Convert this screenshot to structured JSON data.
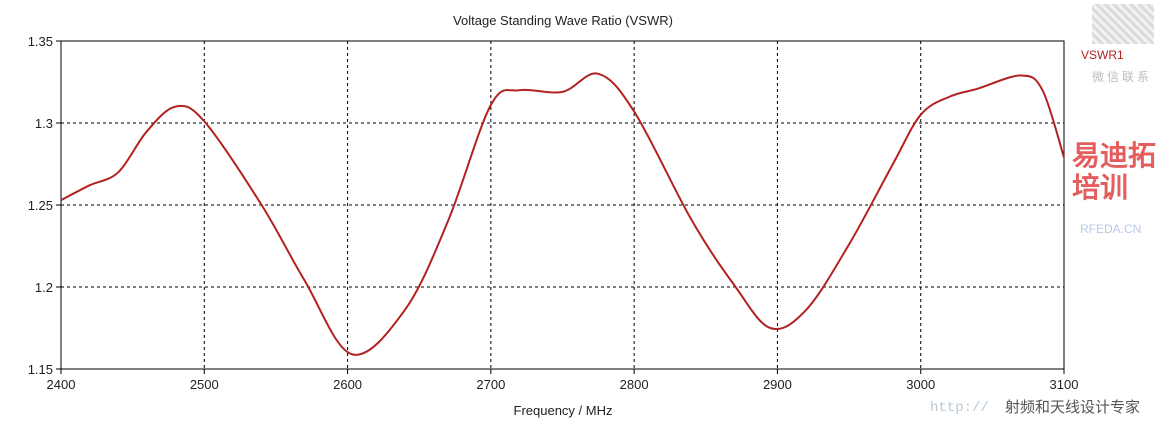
{
  "chart_data": {
    "type": "line",
    "title": "Voltage Standing Wave Ratio (VSWR)",
    "xlabel": "Frequency / MHz",
    "ylabel": "",
    "xlim": [
      2400,
      3100
    ],
    "ylim": [
      1.15,
      1.35
    ],
    "xticks": [
      2400,
      2500,
      2600,
      2700,
      2800,
      2900,
      3000,
      3100
    ],
    "yticks": [
      1.15,
      1.2,
      1.25,
      1.3,
      1.35
    ],
    "xtick_labels": [
      "2400",
      "2500",
      "2600",
      "2700",
      "2800",
      "2900",
      "3000",
      "3100"
    ],
    "ytick_labels": [
      "1.15",
      "1.2",
      "1.25",
      "1.3",
      "1.35"
    ],
    "grid": true,
    "legend_position": "right",
    "series": [
      {
        "name": "VSWR1",
        "color": "#b22222",
        "x": [
          2400,
          2420,
          2440,
          2460,
          2480,
          2500,
          2540,
          2570,
          2603,
          2640,
          2670,
          2700,
          2720,
          2750,
          2775,
          2800,
          2840,
          2870,
          2895,
          2920,
          2950,
          2980,
          3000,
          3020,
          3040,
          3070,
          3085,
          3100
        ],
        "y": [
          1.253,
          1.262,
          1.27,
          1.295,
          1.31,
          1.301,
          1.25,
          1.204,
          1.159,
          1.186,
          1.24,
          1.311,
          1.32,
          1.319,
          1.33,
          1.307,
          1.241,
          1.201,
          1.175,
          1.186,
          1.226,
          1.274,
          1.305,
          1.316,
          1.321,
          1.329,
          1.32,
          1.279
        ]
      }
    ]
  },
  "watermarks": {
    "wechat": "微信联系",
    "site": "RFEDA.CN",
    "brand": "易迪拓培训",
    "slogan": "射频和天线设计专家",
    "url": "http://"
  }
}
